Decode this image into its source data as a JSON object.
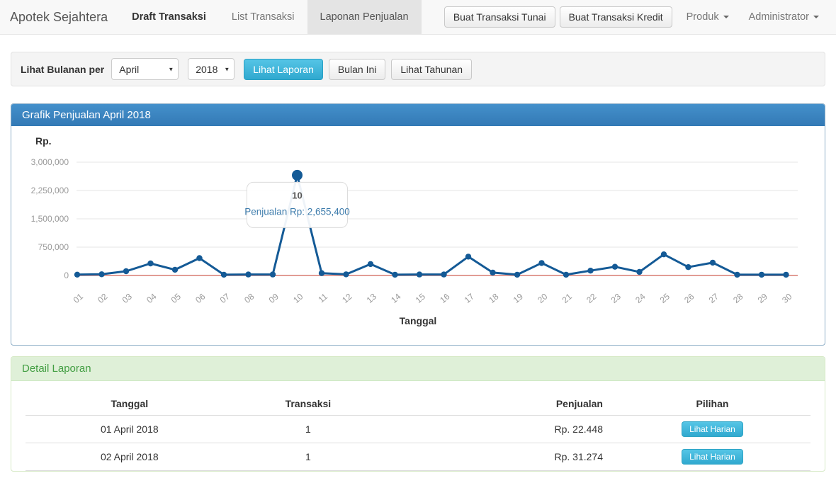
{
  "colors": {
    "primary_header": "#3379b5",
    "info_button": "#41b5d8",
    "success_text": "#429e42"
  },
  "navbar": {
    "brand": "Apotek Sejahtera",
    "items": [
      {
        "label": "Draft Transaksi"
      },
      {
        "label": "List Transaksi"
      },
      {
        "label": "Laponan Penjualan"
      }
    ],
    "buttons": {
      "tunai": "Buat Transaksi Tunai",
      "kredit": "Buat Transaksi Kredit"
    },
    "dropdowns": {
      "produk": "Produk",
      "user": "Administrator"
    }
  },
  "filter": {
    "label": "Lihat Bulanan per",
    "month_value": "April",
    "year_value": "2018",
    "buttons": {
      "lihat_laporan": "Lihat Laporan",
      "bulan_ini": "Bulan Ini",
      "lihat_tahunan": "Lihat Tahunan"
    }
  },
  "chart_panel": {
    "title": "Grafik Penjualan April 2018"
  },
  "chart_data": {
    "type": "line",
    "title": "Grafik Penjualan April 2018",
    "y_axis_label": "Rp.",
    "x_axis_label": "Tanggal",
    "x": [
      "01",
      "02",
      "03",
      "04",
      "05",
      "06",
      "07",
      "08",
      "09",
      "10",
      "11",
      "12",
      "13",
      "14",
      "15",
      "16",
      "17",
      "18",
      "19",
      "20",
      "21",
      "22",
      "23",
      "24",
      "25",
      "26",
      "27",
      "28",
      "29",
      "30"
    ],
    "series": [
      {
        "name": "Penjualan",
        "values": [
          22448,
          31274,
          112000,
          318000,
          152000,
          460000,
          21000,
          26000,
          26000,
          2655400,
          62000,
          30000,
          302000,
          21000,
          26000,
          26000,
          498000,
          76000,
          21000,
          330000,
          21000,
          128000,
          230000,
          94000,
          558000,
          222000,
          340000,
          21000,
          21000,
          21000
        ]
      }
    ],
    "ylim": [
      0,
      3000000
    ],
    "yticks": [
      0,
      750000,
      1500000,
      2250000,
      3000000
    ],
    "ytick_labels": [
      "0",
      "750,000",
      "1,500,000",
      "2,250,000",
      "3,000,000"
    ],
    "grid": "horizontal",
    "legend": "none",
    "tooltip": {
      "point_index": 9,
      "title": "10",
      "label": "Penjualan Rp: 2,655,400"
    },
    "colors": {
      "line": "#145a96",
      "zero_line": "#e29c94",
      "grid": "#e4e4e4",
      "tooltip_text": "#3e7cac"
    }
  },
  "detail_panel": {
    "title": "Detail Laporan",
    "table": {
      "headers": [
        "Tanggal",
        "Transaksi",
        "Penjualan",
        "Pilihan"
      ],
      "rows": [
        {
          "tanggal": "01 April 2018",
          "transaksi": "1",
          "penjualan": "Rp. 22.448",
          "action": "Lihat Harian"
        },
        {
          "tanggal": "02 April 2018",
          "transaksi": "1",
          "penjualan": "Rp. 31.274",
          "action": "Lihat Harian"
        }
      ]
    }
  }
}
